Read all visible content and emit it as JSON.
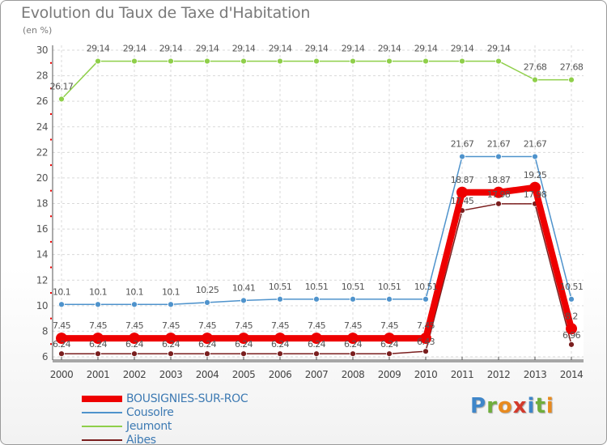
{
  "title": "Evolution du Taux de Taxe d'Habitation",
  "unit": "(en %)",
  "logo": {
    "letters": [
      "P",
      "r",
      "o",
      "x",
      "i",
      "t",
      "i"
    ],
    "colors": [
      "#3f86c9",
      "#6fae3c",
      "#e88a1e",
      "#d33a2c",
      "#3f86c9",
      "#6fae3c",
      "#e88a1e"
    ]
  },
  "chart_data": {
    "type": "line",
    "title": "Evolution du Taux de Taxe d'Habitation",
    "ylabel": "(en %)",
    "xlabel": "",
    "ylim": [
      6,
      30
    ],
    "yticks": [
      "6",
      "8",
      "10",
      "12",
      "14",
      "16",
      "18",
      "20",
      "22",
      "24",
      "26",
      "28",
      "30"
    ],
    "categories": [
      "2000",
      "2001",
      "2002",
      "2003",
      "2004",
      "2005",
      "2006",
      "2007",
      "2008",
      "2009",
      "2010",
      "2011",
      "2012",
      "2013",
      "2014"
    ],
    "series": [
      {
        "name": "Jeumont",
        "color": "#8fcf4a",
        "values": [
          26.17,
          29.14,
          29.14,
          29.14,
          29.14,
          29.14,
          29.14,
          29.14,
          29.14,
          29.14,
          29.14,
          29.14,
          29.14,
          27.68,
          27.68
        ],
        "labels": [
          "26.17",
          "29.14",
          "29.14",
          "29.14",
          "29.14",
          "29.14",
          "29.14",
          "29.14",
          "29.14",
          "29.14",
          "29.14",
          "29.14",
          "29.14",
          "27.68",
          "27.68"
        ]
      },
      {
        "name": "Cousolre",
        "color": "#4f93cc",
        "values": [
          10.1,
          10.1,
          10.1,
          10.1,
          10.25,
          10.41,
          10.51,
          10.51,
          10.51,
          10.51,
          10.51,
          21.67,
          21.67,
          21.67,
          10.51
        ],
        "labels": [
          "10.1",
          "10.1",
          "10.1",
          "10.1",
          "10.25",
          "10.41",
          "10.51",
          "10.51",
          "10.51",
          "10.51",
          "10.51",
          "21.67",
          "21.67",
          "21.67",
          "10.51"
        ]
      },
      {
        "name": "Aibes",
        "color": "#7a1e1e",
        "values": [
          6.24,
          6.24,
          6.24,
          6.24,
          6.24,
          6.24,
          6.24,
          6.24,
          6.24,
          6.24,
          6.43,
          17.45,
          17.98,
          17.98,
          6.96
        ],
        "labels": [
          "6.24",
          "6.24",
          "6.24",
          "6.24",
          "6.24",
          "6.24",
          "6.24",
          "6.24",
          "6.24",
          "6.24",
          "6.43",
          "17.45",
          "17.98",
          "17.98",
          "6.96"
        ]
      },
      {
        "name": "BOUSIGNIES-SUR-ROC",
        "color": "#ee0000",
        "values": [
          7.45,
          7.45,
          7.45,
          7.45,
          7.45,
          7.45,
          7.45,
          7.45,
          7.45,
          7.45,
          7.45,
          18.87,
          18.87,
          19.25,
          8.2
        ],
        "labels": [
          "7.45",
          "7.45",
          "7.45",
          "7.45",
          "7.45",
          "7.45",
          "7.45",
          "7.45",
          "7.45",
          "7.45",
          "7.45",
          "18.87",
          "18.87",
          "19.25",
          "8.2"
        ]
      }
    ],
    "legend": [
      "BOUSIGNIES-SUR-ROC",
      "Cousolre",
      "Jeumont",
      "Aibes"
    ],
    "legend_position": "bottom-left"
  }
}
